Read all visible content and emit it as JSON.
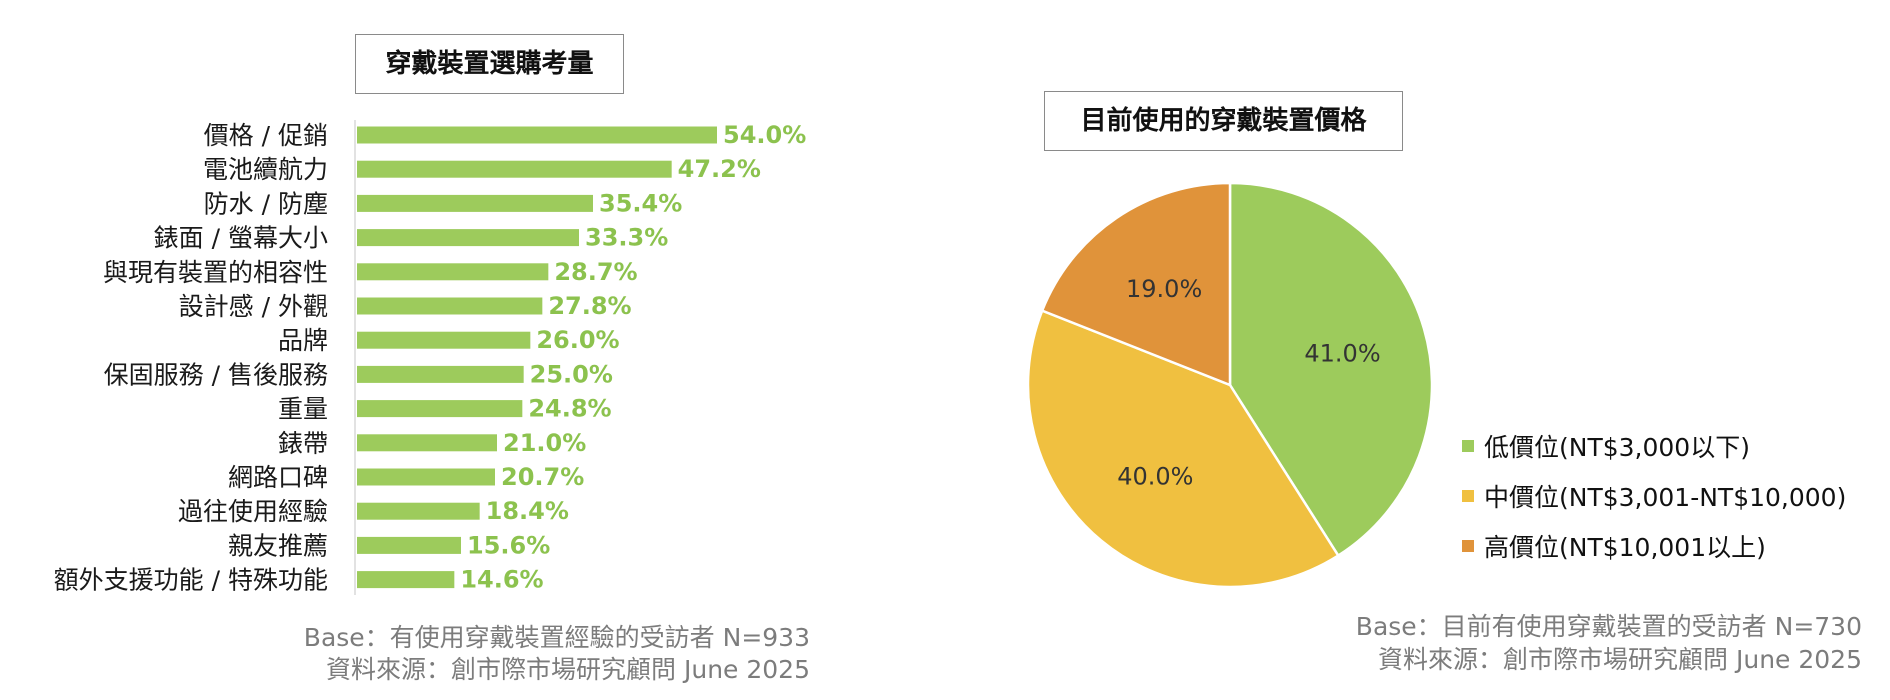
{
  "bar_chart": {
    "title": "穿戴裝置選購考量",
    "base_note": "Base：有使用穿戴裝置經驗的受訪者 N=933",
    "source_note": "資料來源：創市際市場研究顧問 June 2025"
  },
  "pie_chart": {
    "title": "目前使用的穿戴裝置價格",
    "base_note": "Base：目前有使用穿戴裝置的受訪者 N=730",
    "source_note": "資料來源：創市際市場研究顧問 June 2025"
  },
  "colors": {
    "bar": "#9dcb5c",
    "bar_label": "#8cc24e",
    "slice_low": "#9dcb5c",
    "slice_mid": "#f0c040",
    "slice_high": "#e0933a"
  },
  "chart_data": [
    {
      "type": "bar",
      "orientation": "horizontal",
      "title": "穿戴裝置選購考量",
      "categories": [
        "價格 / 促銷",
        "電池續航力",
        "防水 / 防塵",
        "錶面 / 螢幕大小",
        "與現有裝置的相容性",
        "設計感 / 外觀",
        "品牌",
        "保固服務 / 售後服務",
        "重量",
        "錶帶",
        "網路口碑",
        "過往使用經驗",
        "親友推薦",
        "額外支援功能 / 特殊功能"
      ],
      "values": [
        54.0,
        47.2,
        35.4,
        33.3,
        28.7,
        27.8,
        26.0,
        25.0,
        24.8,
        21.0,
        20.7,
        18.4,
        15.6,
        14.6
      ],
      "value_labels": [
        "54.0%",
        "47.2%",
        "35.4%",
        "33.3%",
        "28.7%",
        "27.8%",
        "26.0%",
        "25.0%",
        "24.8%",
        "21.0%",
        "20.7%",
        "18.4%",
        "15.6%",
        "14.6%"
      ],
      "grid": false
    },
    {
      "type": "pie",
      "title": "目前使用的穿戴裝置價格",
      "labels": [
        "低價位(NT$3,000以下)",
        "中價位(NT$3,001-NT$10,000)",
        "高價位(NT$10,001以上)"
      ],
      "values": [
        41.0,
        40.0,
        19.0
      ],
      "value_labels": [
        "41.0%",
        "40.0%",
        "19.0%"
      ],
      "legend": "right"
    }
  ]
}
